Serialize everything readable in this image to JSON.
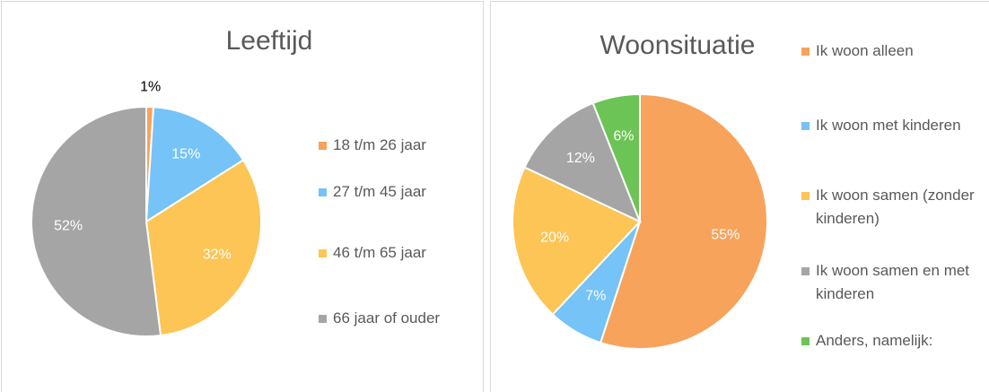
{
  "chart_data": [
    {
      "type": "pie",
      "title": "Leeftijd",
      "categories": [
        "18 t/m 26 jaar",
        "27 t/m 45 jaar",
        "46 t/m 65 jaar",
        "66 jaar of ouder"
      ],
      "values": [
        1,
        15,
        32,
        52
      ],
      "value_labels": [
        "1%",
        "15%",
        "32%",
        "52%"
      ],
      "colors": [
        "#f7a35c",
        "#75c3f7",
        "#fdc456",
        "#a5a5a5"
      ]
    },
    {
      "type": "pie",
      "title": "Woonsituatie",
      "categories": [
        "Ik woon alleen",
        "Ik woon met kinderen",
        "Ik woon samen (zonder kinderen)",
        "Ik woon samen en met kinderen",
        "Anders, namelijk:"
      ],
      "values": [
        55,
        7,
        20,
        12,
        6
      ],
      "value_labels": [
        "55%",
        "7%",
        "20%",
        "12%",
        "6%"
      ],
      "colors": [
        "#f7a35c",
        "#75c3f7",
        "#fdc456",
        "#a5a5a5",
        "#6cc456"
      ]
    }
  ]
}
